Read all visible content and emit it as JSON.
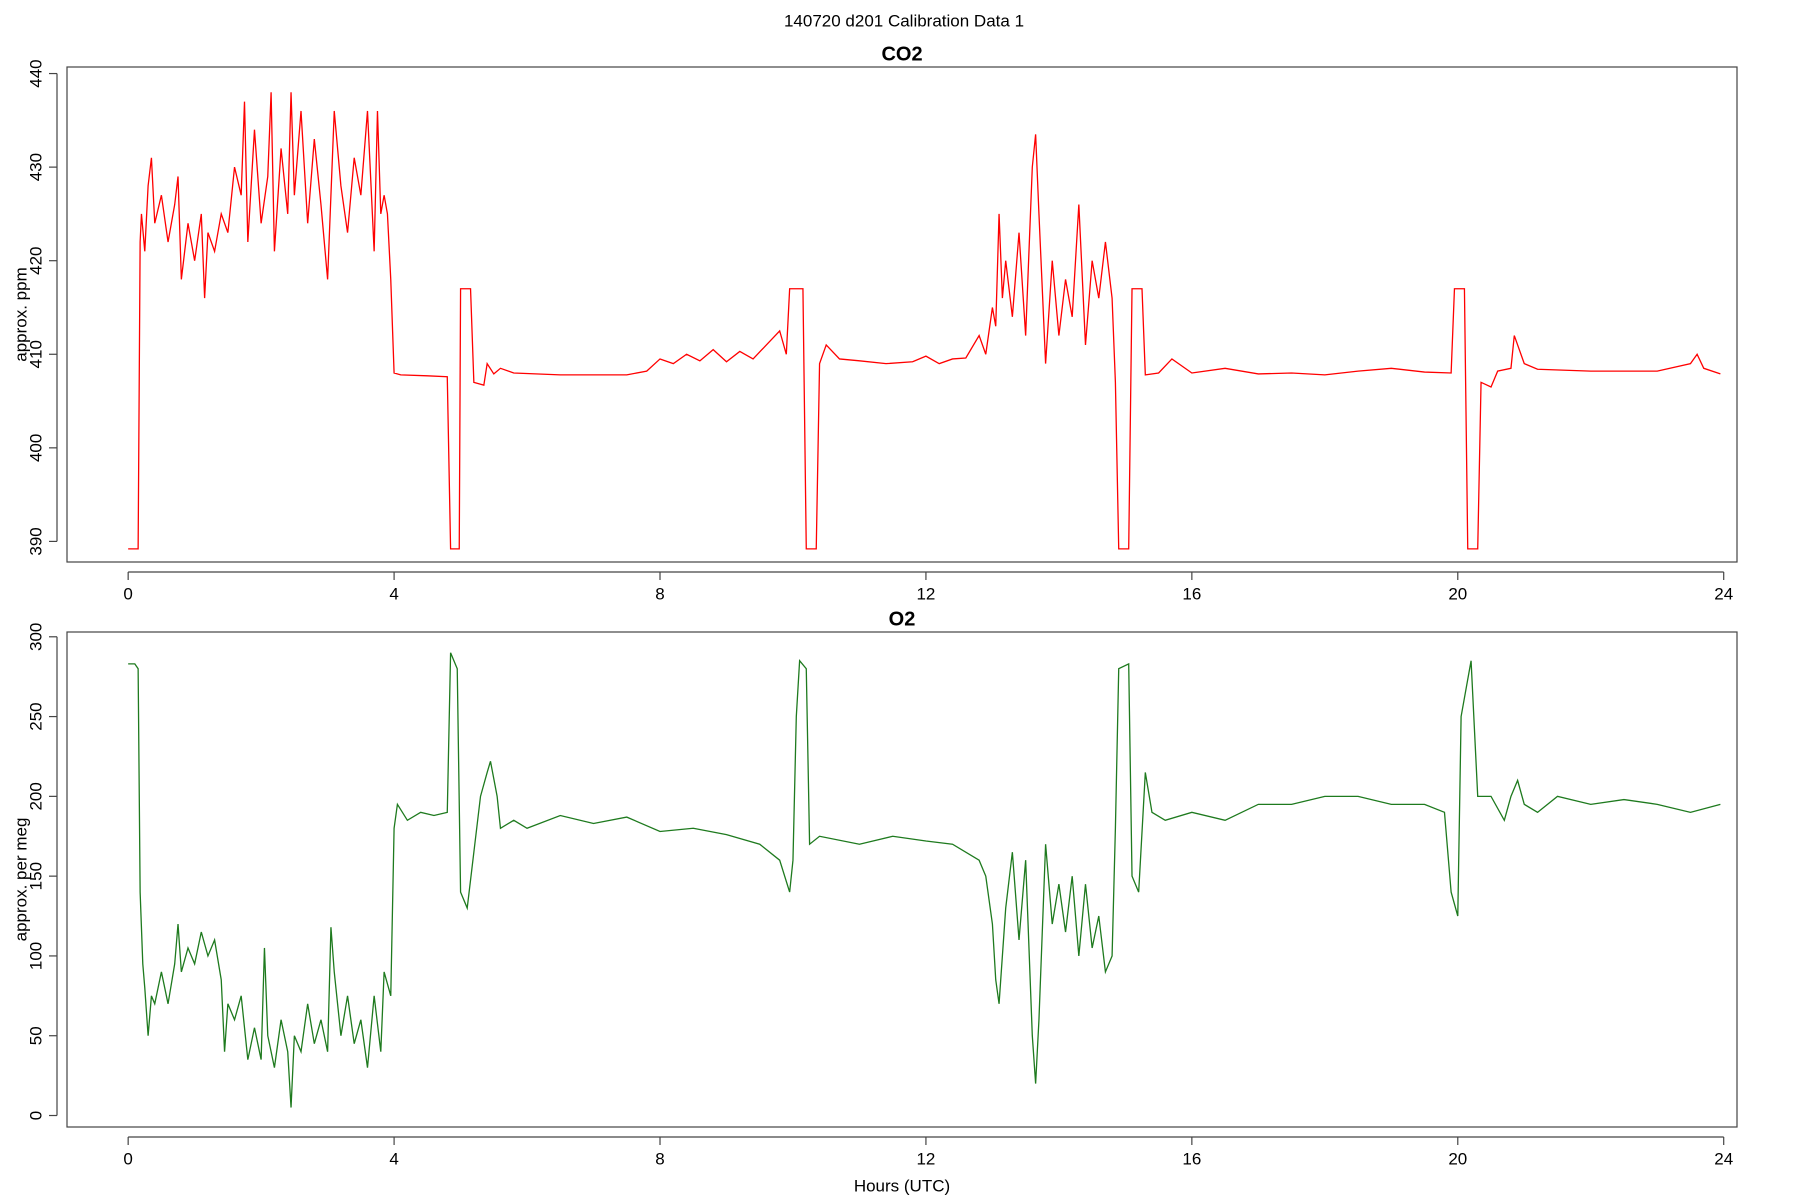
{
  "title": "140720   d201   Calibration Data 1",
  "chart_data": [
    {
      "type": "line",
      "title": "CO2",
      "ylabel": "approx. ppm",
      "x": [
        0,
        0.15,
        0.18,
        0.2,
        0.25,
        0.3,
        0.35,
        0.4,
        0.5,
        0.6,
        0.7,
        0.75,
        0.8,
        0.9,
        1.0,
        1.1,
        1.15,
        1.2,
        1.3,
        1.4,
        1.5,
        1.6,
        1.7,
        1.75,
        1.8,
        1.9,
        2.0,
        2.1,
        2.15,
        2.2,
        2.3,
        2.4,
        2.45,
        2.5,
        2.6,
        2.7,
        2.8,
        2.9,
        3.0,
        3.1,
        3.2,
        3.3,
        3.4,
        3.5,
        3.6,
        3.7,
        3.75,
        3.8,
        3.85,
        3.9,
        3.95,
        4.0,
        4.1,
        4.5,
        4.8,
        4.85,
        4.98,
        5.0,
        5.15,
        5.2,
        5.35,
        5.4,
        5.5,
        5.6,
        5.8,
        6.5,
        7.5,
        7.8,
        8.0,
        8.2,
        8.4,
        8.6,
        8.8,
        9.0,
        9.2,
        9.4,
        9.6,
        9.8,
        9.9,
        9.95,
        10.15,
        10.2,
        10.35,
        10.4,
        10.5,
        10.7,
        11,
        11.4,
        11.8,
        12.0,
        12.2,
        12.4,
        12.6,
        12.8,
        12.9,
        13.0,
        13.05,
        13.1,
        13.15,
        13.2,
        13.3,
        13.4,
        13.5,
        13.6,
        13.65,
        13.7,
        13.8,
        13.9,
        14.0,
        14.1,
        14.2,
        14.3,
        14.4,
        14.5,
        14.6,
        14.7,
        14.8,
        14.85,
        14.9,
        15.05,
        15.1,
        15.25,
        15.3,
        15.5,
        15.7,
        16,
        16.5,
        17,
        17.5,
        18,
        18.5,
        19,
        19.5,
        19.9,
        19.95,
        20.1,
        20.15,
        20.3,
        20.35,
        20.5,
        20.6,
        20.8,
        20.85,
        21.0,
        21.2,
        22,
        23,
        23.5,
        23.6,
        23.7,
        23.95
      ],
      "series": [
        {
          "color": "#ff0000",
          "values": [
            389.2,
            389.2,
            422,
            425,
            421,
            428,
            431,
            424,
            427,
            422,
            426,
            429,
            418,
            424,
            420,
            425,
            416,
            423,
            421,
            425,
            423,
            430,
            427,
            437,
            422,
            434,
            424,
            429,
            438,
            421,
            432,
            425,
            438,
            427,
            436,
            424,
            433,
            426,
            418,
            436,
            428,
            423,
            431,
            427,
            436,
            421,
            436,
            425,
            427,
            425,
            418,
            408,
            407.8,
            407.7,
            407.6,
            389.2,
            389.2,
            417,
            417,
            407,
            406.7,
            409,
            407.9,
            408.5,
            408,
            407.8,
            407.8,
            408.2,
            409.5,
            409,
            410,
            409.3,
            410.5,
            409.2,
            410.3,
            409.5,
            411,
            412.5,
            410,
            417,
            417,
            389.2,
            389.2,
            409,
            411,
            409.5,
            409.3,
            409,
            409.2,
            409.8,
            409,
            409.5,
            409.6,
            412,
            410,
            415,
            413,
            425,
            416,
            420,
            414,
            423,
            412,
            430,
            433.5,
            425,
            409,
            420,
            412,
            418,
            414,
            426,
            411,
            420,
            416,
            422,
            416,
            407,
            389.2,
            389.2,
            417,
            417,
            407.8,
            408,
            409.5,
            408,
            408.5,
            407.9,
            408,
            407.8,
            408.2,
            408.5,
            408.1,
            408,
            417,
            417,
            389.2,
            389.2,
            407,
            406.5,
            408.2,
            408.5,
            412,
            409,
            408.4,
            408.2,
            408.2,
            409,
            410,
            408.5,
            407.9
          ]
        }
      ],
      "xlim": [
        -0.92,
        24.2
      ],
      "xticks": [
        0,
        4,
        8,
        12,
        16,
        20,
        24
      ],
      "ylim": [
        387.8,
        440.7
      ],
      "yticks": [
        390,
        400,
        410,
        420,
        430,
        440
      ]
    },
    {
      "type": "line",
      "title": "O2",
      "ylabel": "approx. per meg",
      "xlabel": "Hours (UTC)",
      "x": [
        0,
        0.1,
        0.15,
        0.18,
        0.22,
        0.25,
        0.3,
        0.35,
        0.4,
        0.5,
        0.6,
        0.7,
        0.75,
        0.8,
        0.9,
        1.0,
        1.1,
        1.2,
        1.3,
        1.4,
        1.45,
        1.5,
        1.6,
        1.7,
        1.8,
        1.9,
        2.0,
        2.05,
        2.1,
        2.2,
        2.3,
        2.4,
        2.45,
        2.5,
        2.6,
        2.7,
        2.8,
        2.9,
        3.0,
        3.05,
        3.1,
        3.2,
        3.3,
        3.4,
        3.5,
        3.6,
        3.7,
        3.8,
        3.85,
        3.95,
        4.0,
        4.05,
        4.2,
        4.4,
        4.6,
        4.8,
        4.85,
        4.95,
        5.0,
        5.1,
        5.2,
        5.3,
        5.4,
        5.45,
        5.55,
        5.6,
        5.8,
        6.0,
        6.5,
        7.0,
        7.5,
        8.0,
        8.5,
        9.0,
        9.5,
        9.8,
        9.95,
        10.0,
        10.05,
        10.1,
        10.2,
        10.25,
        10.4,
        11,
        11.5,
        12,
        12.4,
        12.8,
        12.9,
        13.0,
        13.05,
        13.1,
        13.2,
        13.3,
        13.4,
        13.5,
        13.6,
        13.65,
        13.7,
        13.8,
        13.9,
        14.0,
        14.1,
        14.2,
        14.3,
        14.4,
        14.5,
        14.6,
        14.7,
        14.8,
        14.85,
        14.9,
        15.05,
        15.1,
        15.2,
        15.3,
        15.4,
        15.6,
        16,
        16.5,
        17,
        17.5,
        18,
        18.5,
        19,
        19.5,
        19.8,
        19.9,
        20.0,
        20.05,
        20.2,
        20.3,
        20.5,
        20.7,
        20.8,
        20.9,
        21.0,
        21.2,
        21.5,
        22,
        22.5,
        23,
        23.5,
        23.95
      ],
      "series": [
        {
          "color": "#1e7a1e",
          "values": [
            283,
            283,
            280,
            140,
            95,
            80,
            50,
            75,
            70,
            90,
            70,
            95,
            120,
            90,
            105,
            95,
            115,
            100,
            110,
            85,
            40,
            70,
            60,
            75,
            35,
            55,
            35,
            105,
            50,
            30,
            60,
            40,
            5,
            50,
            40,
            70,
            45,
            60,
            40,
            118,
            90,
            50,
            75,
            45,
            60,
            30,
            75,
            40,
            90,
            75,
            180,
            195,
            185,
            190,
            188,
            190,
            290,
            280,
            140,
            130,
            165,
            200,
            215,
            222,
            200,
            180,
            185,
            180,
            188,
            183,
            187,
            178,
            180,
            176,
            170,
            160,
            140,
            160,
            250,
            285,
            280,
            170,
            175,
            170,
            175,
            172,
            170,
            160,
            150,
            120,
            85,
            70,
            130,
            165,
            110,
            160,
            50,
            20,
            60,
            170,
            120,
            145,
            115,
            150,
            100,
            145,
            105,
            125,
            90,
            100,
            180,
            280,
            283,
            150,
            140,
            215,
            190,
            185,
            190,
            185,
            195,
            195,
            200,
            200,
            195,
            195,
            190,
            140,
            125,
            250,
            285,
            200,
            200,
            185,
            200,
            210,
            195,
            190,
            200,
            195,
            198,
            195,
            190,
            195
          ]
        }
      ],
      "xlim": [
        -0.92,
        24.2
      ],
      "xticks": [
        0,
        4,
        8,
        12,
        16,
        20,
        24
      ],
      "ylim": [
        -7.2,
        303
      ],
      "yticks": [
        0,
        50,
        100,
        150,
        200,
        250,
        300
      ]
    }
  ]
}
